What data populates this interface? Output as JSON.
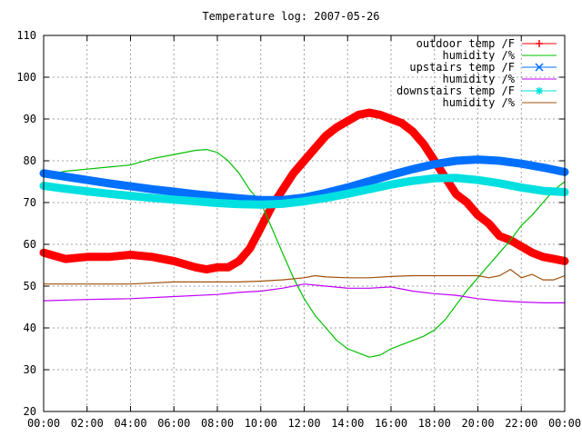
{
  "chart_data": {
    "type": "line",
    "title": "Temperature log: 2007-05-26",
    "xlabel": "",
    "ylabel": "",
    "x_tick_labels": [
      "00:00",
      "02:00",
      "04:00",
      "06:00",
      "08:00",
      "10:00",
      "12:00",
      "14:00",
      "16:00",
      "18:00",
      "20:00",
      "22:00",
      "00:00"
    ],
    "x_range_hours": [
      0,
      24
    ],
    "y_ticks": [
      20,
      30,
      40,
      50,
      60,
      70,
      80,
      90,
      100,
      110
    ],
    "ylim": [
      20,
      110
    ],
    "grid": true,
    "legend_position": "top-right",
    "series": [
      {
        "name": "outdoor temp /F",
        "color": "#ff0000",
        "marker": "plus",
        "style": "thick-markers",
        "x": [
          0,
          1,
          2,
          3,
          4,
          5,
          6,
          7,
          7.5,
          8,
          8.5,
          9,
          9.5,
          10,
          10.5,
          11,
          11.5,
          12,
          12.5,
          13,
          13.5,
          14,
          14.5,
          15,
          15.5,
          16,
          16.5,
          17,
          17.5,
          18,
          18.5,
          19,
          19.5,
          20,
          20.5,
          21,
          21.5,
          22,
          22.5,
          23,
          23.5,
          24
        ],
        "y": [
          58,
          56.5,
          57,
          57,
          57.5,
          57,
          56,
          54.5,
          54,
          54.5,
          54.5,
          56,
          59,
          64,
          69,
          73,
          77,
          80,
          83,
          86,
          88,
          89.5,
          91,
          91.5,
          91,
          90,
          89,
          87,
          84,
          80,
          76,
          72,
          70,
          67,
          65,
          62,
          61,
          59.5,
          58,
          57,
          56.5,
          56
        ]
      },
      {
        "name": "humidity /%",
        "color": "#00c000",
        "marker": "none",
        "style": "thin-line",
        "x": [
          0,
          0.5,
          1,
          2,
          3,
          4,
          5,
          6,
          7,
          7.5,
          8,
          8.5,
          9,
          9.5,
          10,
          10.5,
          11,
          11.5,
          12,
          12.5,
          13,
          13.5,
          14,
          14.5,
          15,
          15.5,
          16,
          16.5,
          17,
          17.5,
          18,
          18.5,
          19,
          19.5,
          20,
          20.5,
          21,
          21.5,
          22,
          22.5,
          23,
          23.5,
          24
        ],
        "y": [
          76,
          77,
          77.5,
          78,
          78.5,
          79,
          80.5,
          81.5,
          82.5,
          82.7,
          82,
          80,
          77,
          73,
          70,
          64,
          58,
          52,
          47,
          43,
          40,
          37,
          35,
          34,
          33,
          33.5,
          35,
          36,
          37,
          38,
          39.5,
          42,
          45.5,
          49,
          52,
          55,
          58,
          61,
          64.5,
          67,
          70,
          73,
          75
        ]
      },
      {
        "name": "upstairs temp /F",
        "color": "#0070ff",
        "marker": "cross",
        "style": "thick-markers",
        "x": [
          0,
          1,
          2,
          3,
          4,
          5,
          6,
          7,
          8,
          9,
          10,
          11,
          12,
          13,
          14,
          15,
          16,
          17,
          18,
          19,
          20,
          21,
          22,
          23,
          24
        ],
        "y": [
          77,
          76.2,
          75.4,
          74.6,
          73.9,
          73.2,
          72.6,
          72,
          71.5,
          71,
          70.6,
          70.6,
          71.2,
          72.3,
          73.6,
          75.1,
          76.6,
          78,
          79.2,
          80,
          80.3,
          80,
          79.3,
          78.4,
          77.3
        ]
      },
      {
        "name": "humidity /%",
        "color": "#c000ff",
        "marker": "none",
        "style": "thin-line",
        "x": [
          0,
          2,
          4,
          6,
          8,
          9,
          10,
          11,
          12,
          13,
          14,
          15,
          16,
          17,
          18,
          19,
          20,
          21,
          22,
          23,
          24
        ],
        "y": [
          46.5,
          46.8,
          47,
          47.5,
          48,
          48.5,
          48.8,
          49.5,
          50.5,
          50,
          49.5,
          49.5,
          49.8,
          48.8,
          48.2,
          47.8,
          47,
          46.5,
          46.2,
          46,
          46
        ]
      },
      {
        "name": "downstairs temp /F",
        "color": "#00e0e0",
        "marker": "star",
        "style": "thick-markers",
        "x": [
          0,
          1,
          2,
          3,
          4,
          5,
          6,
          7,
          8,
          9,
          10,
          11,
          12,
          13,
          14,
          15,
          16,
          17,
          18,
          19,
          20,
          21,
          22,
          23,
          24
        ],
        "y": [
          74,
          73.3,
          72.7,
          72.1,
          71.6,
          71.1,
          70.7,
          70.3,
          69.9,
          69.6,
          69.5,
          69.7,
          70.3,
          71.1,
          72.1,
          73.2,
          74.3,
          75.2,
          75.8,
          75.9,
          75.4,
          74.6,
          73.6,
          72.8,
          72.5
        ]
      },
      {
        "name": "humidity /%",
        "color": "#a0500a",
        "marker": "none",
        "style": "thin-line",
        "x": [
          0,
          2,
          4,
          6,
          8,
          9,
          10,
          11,
          12,
          12.5,
          13,
          14,
          15,
          16,
          17,
          18,
          19,
          20,
          20.5,
          21,
          21.5,
          22,
          22.5,
          23,
          23.5,
          24
        ],
        "y": [
          50.5,
          50.5,
          50.5,
          51,
          51,
          51,
          51.2,
          51.5,
          52,
          52.5,
          52.2,
          52,
          52,
          52.3,
          52.5,
          52.5,
          52.5,
          52.5,
          52,
          52.5,
          54,
          52,
          52.8,
          51.5,
          51.5,
          52.5
        ]
      }
    ]
  }
}
